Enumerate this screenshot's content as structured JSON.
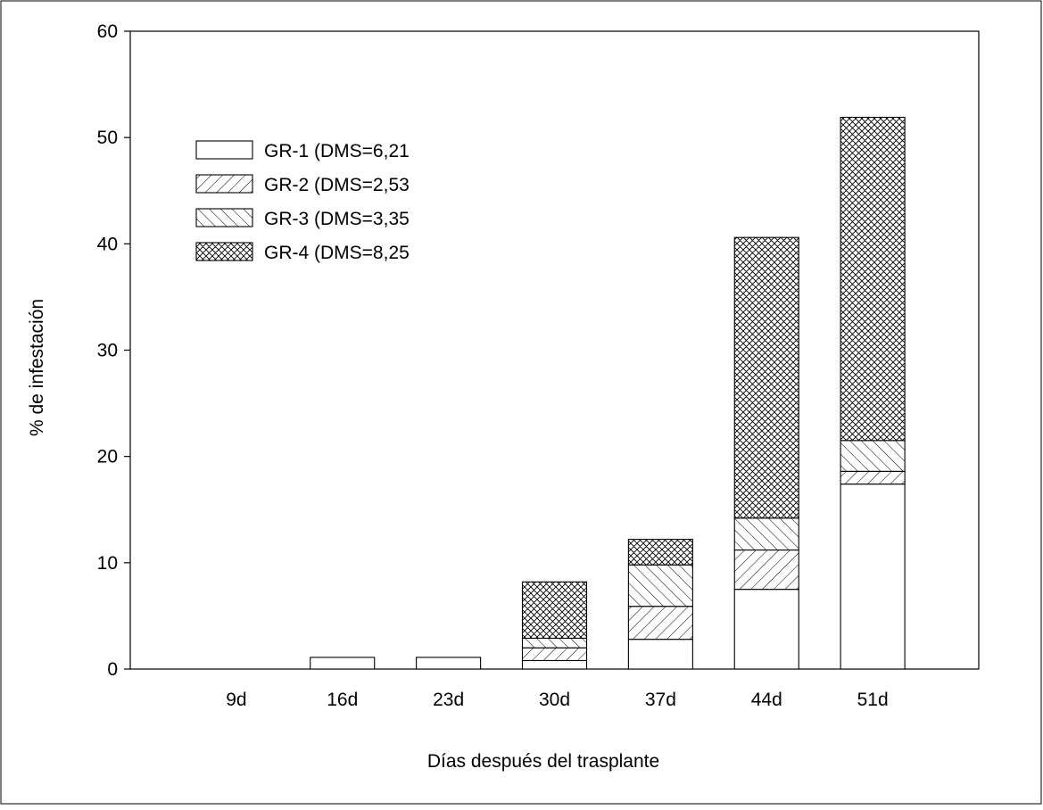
{
  "chart_data": {
    "type": "bar",
    "stacked": true,
    "title": "",
    "xlabel": "Días después del trasplante",
    "ylabel": "% de infestación",
    "ylim": [
      0,
      60
    ],
    "yticks": [
      "0",
      "10",
      "20",
      "30",
      "40",
      "50",
      "60"
    ],
    "categories": [
      "9d",
      "16d",
      "23d",
      "30d",
      "37d",
      "44d",
      "51d"
    ],
    "series": [
      {
        "name": "GR-1 (DMS=6,21",
        "pattern": "none",
        "values": [
          0,
          1.1,
          1.1,
          0.8,
          2.8,
          7.5,
          17.4
        ]
      },
      {
        "name": "GR-2 (DMS=2,53",
        "pattern": "diag-forward",
        "values": [
          0,
          0,
          0,
          1.2,
          3.1,
          3.7,
          1.2
        ]
      },
      {
        "name": "GR-3 (DMS=3,35",
        "pattern": "diag-back",
        "values": [
          0,
          0,
          0,
          0.9,
          3.9,
          3.0,
          2.9
        ]
      },
      {
        "name": "GR-4 (DMS=8,25",
        "pattern": "crosshatch",
        "values": [
          0,
          0,
          0,
          5.3,
          2.4,
          26.4,
          30.4
        ]
      }
    ],
    "grid": false,
    "legend_position": "top-left",
    "colors": {
      "stroke": "#000000",
      "fill": "#ffffff"
    }
  }
}
